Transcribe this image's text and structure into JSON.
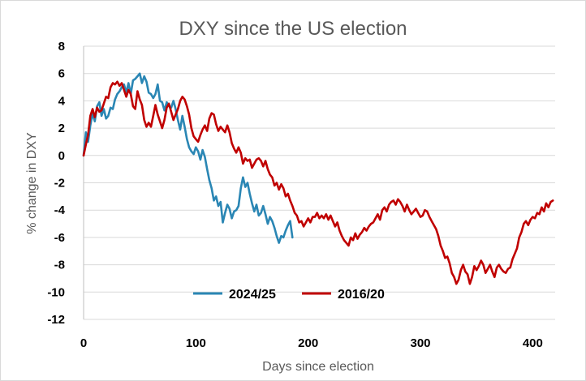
{
  "chart_data": {
    "type": "line",
    "title": "DXY since the US election",
    "xlabel": "Days since election",
    "ylabel": "% change in DXY",
    "xlim": [
      0,
      420
    ],
    "ylim": [
      -12,
      8
    ],
    "x_ticks": [
      0,
      100,
      200,
      300,
      400
    ],
    "y_ticks": [
      8,
      6,
      4,
      2,
      0,
      -2,
      -4,
      -6,
      -8,
      -10,
      -12
    ],
    "grid": "horizontal",
    "legend_position": "bottom-center",
    "series": [
      {
        "name": "2024/25",
        "color": "#2a86b4",
        "x": [
          0,
          2,
          4,
          6,
          8,
          10,
          12,
          14,
          16,
          18,
          20,
          22,
          24,
          26,
          28,
          30,
          32,
          34,
          36,
          38,
          40,
          42,
          44,
          46,
          48,
          50,
          52,
          54,
          56,
          58,
          60,
          62,
          64,
          66,
          68,
          70,
          72,
          74,
          76,
          78,
          80,
          82,
          84,
          86,
          88,
          90,
          92,
          94,
          96,
          98,
          100,
          102,
          104,
          106,
          108,
          110,
          112,
          114,
          116,
          118,
          120,
          122,
          124,
          126,
          128,
          130,
          132,
          134,
          136,
          138,
          140,
          142,
          144,
          146,
          148,
          150,
          152,
          154,
          156,
          158,
          160,
          162,
          164,
          166,
          168,
          170,
          172,
          174,
          176,
          178,
          180,
          182,
          184,
          186
        ],
        "y": [
          0.0,
          1.7,
          1.0,
          2.2,
          3.1,
          2.5,
          3.6,
          3.9,
          2.9,
          3.4,
          2.7,
          2.9,
          3.5,
          3.4,
          4.1,
          4.5,
          4.7,
          5.0,
          5.2,
          4.6,
          5.3,
          4.5,
          5.5,
          5.6,
          5.8,
          6.0,
          5.3,
          5.8,
          5.4,
          4.6,
          4.5,
          4.2,
          4.5,
          5.2,
          4.0,
          3.9,
          3.3,
          3.9,
          3.6,
          3.5,
          4.0,
          3.4,
          2.6,
          1.9,
          2.9,
          2.1,
          1.2,
          0.6,
          0.3,
          0.1,
          0.6,
          0.3,
          -0.3,
          0.4,
          -0.1,
          -1.0,
          -1.8,
          -2.4,
          -3.3,
          -3.0,
          -3.7,
          -3.4,
          -4.9,
          -4.2,
          -3.6,
          -3.9,
          -4.6,
          -4.1,
          -4.0,
          -3.7,
          -2.4,
          -1.6,
          -2.3,
          -2.0,
          -2.8,
          -3.5,
          -4.1,
          -3.6,
          -4.4,
          -4.2,
          -3.7,
          -4.3,
          -5.0,
          -4.5,
          -4.8,
          -5.3,
          -5.9,
          -6.4,
          -5.9,
          -6.0,
          -5.5,
          -5.1,
          -4.8,
          -6.0
        ]
      },
      {
        "name": "2016/20",
        "color": "#c00000",
        "x": [
          0,
          2,
          4,
          6,
          8,
          10,
          12,
          14,
          16,
          18,
          20,
          22,
          24,
          26,
          28,
          30,
          32,
          34,
          36,
          38,
          40,
          42,
          44,
          46,
          48,
          50,
          52,
          54,
          56,
          58,
          60,
          62,
          64,
          66,
          68,
          70,
          72,
          74,
          76,
          78,
          80,
          82,
          84,
          86,
          88,
          90,
          92,
          94,
          96,
          98,
          100,
          102,
          104,
          106,
          108,
          110,
          112,
          114,
          116,
          118,
          120,
          122,
          124,
          126,
          128,
          130,
          132,
          134,
          136,
          138,
          140,
          142,
          144,
          146,
          148,
          150,
          152,
          154,
          156,
          158,
          160,
          162,
          164,
          166,
          168,
          170,
          172,
          174,
          176,
          178,
          180,
          182,
          184,
          186,
          188,
          190,
          192,
          194,
          196,
          198,
          200,
          202,
          204,
          206,
          208,
          210,
          212,
          214,
          216,
          218,
          220,
          222,
          224,
          226,
          228,
          230,
          232,
          234,
          236,
          238,
          240,
          242,
          244,
          246,
          248,
          250,
          252,
          254,
          256,
          258,
          260,
          262,
          264,
          266,
          268,
          270,
          272,
          274,
          276,
          278,
          280,
          282,
          284,
          286,
          288,
          290,
          292,
          294,
          296,
          298,
          300,
          302,
          304,
          306,
          308,
          310,
          312,
          314,
          316,
          318,
          320,
          322,
          324,
          326,
          328,
          330,
          332,
          334,
          336,
          338,
          340,
          342,
          344,
          346,
          348,
          350,
          352,
          354,
          356,
          358,
          360,
          362,
          364,
          366,
          368,
          370,
          372,
          374,
          376,
          378,
          380,
          382,
          384,
          386,
          388,
          390,
          392,
          394,
          396,
          398,
          400,
          402,
          404,
          406,
          408,
          410,
          412,
          414,
          416,
          418
        ],
        "y": [
          0.0,
          0.8,
          1.5,
          2.9,
          3.4,
          2.8,
          3.5,
          3.2,
          3.3,
          3.8,
          4.3,
          4.2,
          5.0,
          5.3,
          5.2,
          5.4,
          5.1,
          5.3,
          4.8,
          4.3,
          4.8,
          4.5,
          3.6,
          3.4,
          4.7,
          4.1,
          3.7,
          2.6,
          2.1,
          2.4,
          2.1,
          2.9,
          3.7,
          3.0,
          2.5,
          2.0,
          2.6,
          3.5,
          3.8,
          3.2,
          2.6,
          3.0,
          3.4,
          4.0,
          4.3,
          4.1,
          3.6,
          3.0,
          2.0,
          1.4,
          1.2,
          1.0,
          1.5,
          1.9,
          2.2,
          1.8,
          2.7,
          3.1,
          3.0,
          2.3,
          1.8,
          2.1,
          1.9,
          1.7,
          2.2,
          1.7,
          0.9,
          0.5,
          0.2,
          0.6,
          0.2,
          -0.6,
          -0.2,
          -0.4,
          -0.3,
          -0.9,
          -0.6,
          -0.3,
          -0.2,
          -0.4,
          -0.8,
          -0.4,
          -1.0,
          -1.4,
          -1.6,
          -2.2,
          -2.0,
          -2.5,
          -2.1,
          -2.4,
          -3.0,
          -2.8,
          -3.3,
          -3.7,
          -4.2,
          -4.4,
          -4.9,
          -4.8,
          -5.2,
          -4.9,
          -4.6,
          -4.9,
          -4.5,
          -4.5,
          -4.2,
          -4.6,
          -4.4,
          -4.6,
          -4.3,
          -4.7,
          -4.4,
          -4.8,
          -5.2,
          -4.9,
          -5.5,
          -5.9,
          -6.2,
          -6.4,
          -6.6,
          -6.0,
          -6.2,
          -5.7,
          -6.1,
          -5.8,
          -5.6,
          -5.3,
          -5.5,
          -5.2,
          -5.0,
          -4.9,
          -4.6,
          -4.3,
          -4.7,
          -4.0,
          -3.8,
          -4.1,
          -3.6,
          -3.4,
          -3.3,
          -3.6,
          -3.2,
          -3.4,
          -3.7,
          -4.1,
          -3.6,
          -4.0,
          -4.3,
          -4.1,
          -3.9,
          -4.2,
          -4.5,
          -4.4,
          -4.0,
          -4.1,
          -4.5,
          -4.8,
          -5.1,
          -5.4,
          -5.9,
          -6.6,
          -7.0,
          -7.5,
          -7.4,
          -7.9,
          -8.6,
          -8.9,
          -9.4,
          -9.1,
          -8.4,
          -8.0,
          -8.5,
          -8.7,
          -9.4,
          -8.9,
          -8.1,
          -8.4,
          -8.1,
          -7.7,
          -8.0,
          -8.6,
          -8.3,
          -8.0,
          -8.5,
          -8.9,
          -8.2,
          -8.0,
          -8.3,
          -8.5,
          -8.6,
          -8.3,
          -8.2,
          -7.6,
          -7.2,
          -6.8,
          -6.0,
          -5.6,
          -5.0,
          -4.8,
          -5.1,
          -4.7,
          -4.5,
          -4.6,
          -4.2,
          -4.3,
          -3.8,
          -4.1,
          -3.5,
          -3.8,
          -3.4,
          -3.3
        ]
      }
    ]
  }
}
